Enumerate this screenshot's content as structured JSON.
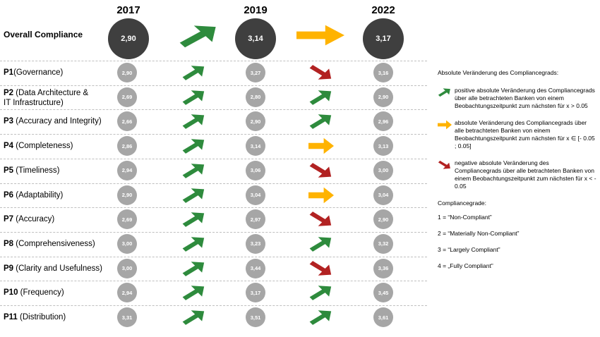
{
  "years": [
    "2017",
    "2019",
    "2022"
  ],
  "overall": {
    "label": "Overall Compliance",
    "values": [
      "2,90",
      "3,14",
      "3,17"
    ],
    "trends": [
      "up",
      "flat"
    ]
  },
  "rows": [
    {
      "code": "P1",
      "name": "(Governance)",
      "v2017": "2,90",
      "t1": "up",
      "v2019": "3,27",
      "t2": "down",
      "v2022": "3,16"
    },
    {
      "code": "P2",
      "name": " (Data Architecture &\nIT Infrastructure)",
      "v2017": "2,69",
      "t1": "up",
      "v2019": "2,80",
      "t2": "up",
      "v2022": "2,90"
    },
    {
      "code": "P3",
      "name": " (Accuracy and Integrity)",
      "v2017": "2,66",
      "t1": "up",
      "v2019": "2,90",
      "t2": "up",
      "v2022": "2,96"
    },
    {
      "code": "P4",
      "name": " (Completeness)",
      "v2017": "2,86",
      "t1": "up",
      "v2019": "3,14",
      "t2": "flat",
      "v2022": "3,13"
    },
    {
      "code": "P5",
      "name": " (Timeliness)",
      "v2017": "2,94",
      "t1": "up",
      "v2019": "3,06",
      "t2": "down",
      "v2022": "3,00"
    },
    {
      "code": "P6",
      "name": " (Adaptability)",
      "v2017": "2,90",
      "t1": "up",
      "v2019": "3,04",
      "t2": "flat",
      "v2022": "3,04"
    },
    {
      "code": "P7",
      "name": " (Accuracy)",
      "v2017": "2,69",
      "t1": "up",
      "v2019": "2,97",
      "t2": "down",
      "v2022": "2,90"
    },
    {
      "code": "P8",
      "name": " (Comprehensiveness)",
      "v2017": "3,00",
      "t1": "up",
      "v2019": "3,23",
      "t2": "up",
      "v2022": "3,32"
    },
    {
      "code": "P9",
      "name": " (Clarity and Usefulness)",
      "v2017": "3,00",
      "t1": "up",
      "v2019": "3,44",
      "t2": "down",
      "v2022": "3,36"
    },
    {
      "code": "P10",
      "name": " (Frequency)",
      "v2017": "2,94",
      "t1": "up",
      "v2019": "3,17",
      "t2": "up",
      "v2022": "3,45"
    },
    {
      "code": "P11",
      "name": " (Distribution)",
      "v2017": "3,31",
      "t1": "up",
      "v2019": "3,51",
      "t2": "up",
      "v2022": "3,61"
    }
  ],
  "legend": {
    "title": "Absolute Veränderung des Compliancegrads:",
    "positive": "positive absolute Veränderung des Compliancegrads über alle betrachteten Banken von einem Beobachtungszeitpunkt zum nächsten für x > 0.05",
    "neutral": "absolute Veränderung des Compliancegrads über alle betrachteten Banken von einem Beobachtungszeitpunkt zum nächsten für x ∈ [- 0.05 ; 0.05]",
    "negative": "negative absolute Veränderung des Compliancegrads über alle betrachteten Banken von einem Beobachtungszeitpunkt zum nächsten für x < - 0.05",
    "grades_title": "Compliancegrade:",
    "grades": [
      "1 = “Non-Compliant”",
      "2 = “Materially Non-Compliant”",
      "3 = “Largely Compliant”",
      "4 = „Fully Compliant”"
    ]
  },
  "colors": {
    "up": "#2e8b3d",
    "flat": "#ffb300",
    "down": "#b22222",
    "big_circle": "#3f3f3f",
    "small_circle": "#a6a6a6"
  }
}
